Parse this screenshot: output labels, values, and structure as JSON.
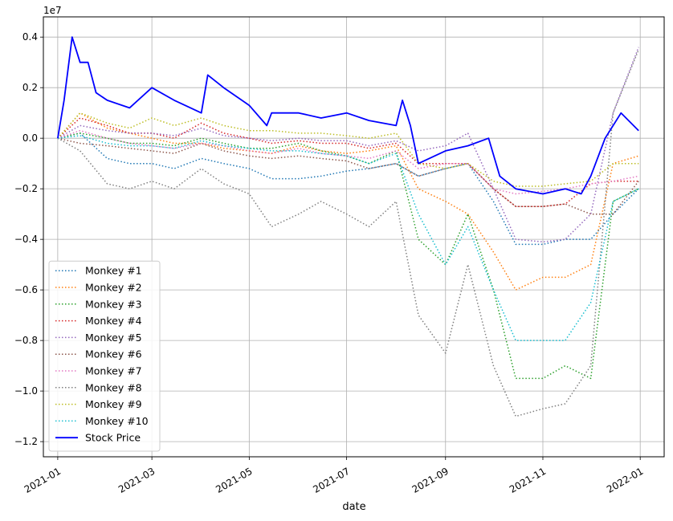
{
  "chart_data": {
    "type": "line",
    "title": "",
    "xlabel": "date",
    "ylabel": "",
    "y_scale_label": "1e7",
    "y_scale": 10000000,
    "xlim": [
      "2020-12-23",
      "2022-01-16"
    ],
    "ylim": [
      -1.26,
      0.48
    ],
    "grid": true,
    "legend_position": "lower-left",
    "x_ticks": [
      "2021-01-01",
      "2021-03-01",
      "2021-05-01",
      "2021-07-01",
      "2021-09-01",
      "2021-11-01",
      "2022-01-01"
    ],
    "x_tick_labels": [
      "2021-01",
      "2021-03",
      "2021-05",
      "2021-07",
      "2021-09",
      "2021-11",
      "2022-01"
    ],
    "y_ticks": [
      -1.2,
      -1.0,
      -0.8,
      -0.6,
      -0.4,
      -0.2,
      0.0,
      0.2,
      0.4
    ],
    "y_tick_labels": [
      "−1.2",
      "−1.0",
      "−0.8",
      "−0.6",
      "−0.4",
      "−0.2",
      "0.0",
      "0.2",
      "0.4"
    ],
    "series": [
      {
        "name": "Monkey #1",
        "color": "#1f77b4",
        "style": "dotted",
        "x": [
          "2021-01-01",
          "2021-01-15",
          "2021-02-01",
          "2021-02-15",
          "2021-03-01",
          "2021-03-15",
          "2021-04-01",
          "2021-04-15",
          "2021-05-01",
          "2021-05-15",
          "2021-06-01",
          "2021-06-15",
          "2021-07-01",
          "2021-07-15",
          "2021-08-01",
          "2021-08-15",
          "2021-09-01",
          "2021-09-15",
          "2021-10-01",
          "2021-10-15",
          "2021-11-01",
          "2021-11-15",
          "2021-12-01",
          "2021-12-15",
          "2021-12-31"
        ],
        "y": [
          0.0,
          0.02,
          -0.08,
          -0.1,
          -0.1,
          -0.12,
          -0.08,
          -0.1,
          -0.12,
          -0.16,
          -0.16,
          -0.15,
          -0.13,
          -0.12,
          -0.1,
          -0.15,
          -0.12,
          -0.1,
          -0.25,
          -0.42,
          -0.42,
          -0.4,
          -0.4,
          -0.3,
          -0.2
        ]
      },
      {
        "name": "Monkey #2",
        "color": "#ff7f0e",
        "style": "dotted",
        "x": [
          "2021-01-01",
          "2021-01-15",
          "2021-02-01",
          "2021-02-15",
          "2021-03-01",
          "2021-03-15",
          "2021-04-01",
          "2021-04-15",
          "2021-05-01",
          "2021-05-15",
          "2021-06-01",
          "2021-06-15",
          "2021-07-01",
          "2021-07-15",
          "2021-08-01",
          "2021-08-15",
          "2021-09-01",
          "2021-09-15",
          "2021-10-01",
          "2021-10-15",
          "2021-11-01",
          "2021-11-15",
          "2021-12-01",
          "2021-12-15",
          "2021-12-31"
        ],
        "y": [
          0.0,
          0.1,
          0.04,
          0.02,
          0.0,
          -0.02,
          -0.02,
          -0.04,
          -0.05,
          -0.06,
          -0.03,
          -0.05,
          -0.06,
          -0.05,
          -0.03,
          -0.2,
          -0.25,
          -0.3,
          -0.45,
          -0.6,
          -0.55,
          -0.55,
          -0.5,
          -0.1,
          -0.07
        ]
      },
      {
        "name": "Monkey #3",
        "color": "#2ca02c",
        "style": "dotted",
        "x": [
          "2021-01-01",
          "2021-01-15",
          "2021-02-01",
          "2021-02-15",
          "2021-03-01",
          "2021-03-15",
          "2021-04-01",
          "2021-04-15",
          "2021-05-01",
          "2021-05-15",
          "2021-06-01",
          "2021-06-15",
          "2021-07-01",
          "2021-07-15",
          "2021-08-01",
          "2021-08-15",
          "2021-09-01",
          "2021-09-15",
          "2021-10-01",
          "2021-10-15",
          "2021-11-01",
          "2021-11-15",
          "2021-12-01",
          "2021-12-15",
          "2021-12-31"
        ],
        "y": [
          0.0,
          0.02,
          0.0,
          -0.02,
          -0.02,
          -0.03,
          0.0,
          -0.02,
          -0.04,
          -0.04,
          -0.02,
          -0.05,
          -0.07,
          -0.1,
          -0.05,
          -0.4,
          -0.5,
          -0.3,
          -0.6,
          -0.95,
          -0.95,
          -0.9,
          -0.95,
          -0.25,
          -0.2
        ]
      },
      {
        "name": "Monkey #4",
        "color": "#d62728",
        "style": "dotted",
        "x": [
          "2021-01-01",
          "2021-01-15",
          "2021-02-01",
          "2021-02-15",
          "2021-03-01",
          "2021-03-15",
          "2021-04-01",
          "2021-04-15",
          "2021-05-01",
          "2021-05-15",
          "2021-06-01",
          "2021-06-15",
          "2021-07-01",
          "2021-07-15",
          "2021-08-01",
          "2021-08-15",
          "2021-09-01",
          "2021-09-15",
          "2021-10-01",
          "2021-10-15",
          "2021-11-01",
          "2021-11-15",
          "2021-12-01",
          "2021-12-15",
          "2021-12-31"
        ],
        "y": [
          0.0,
          0.08,
          0.05,
          0.02,
          0.02,
          0.0,
          0.06,
          0.02,
          0.0,
          -0.02,
          -0.01,
          -0.02,
          -0.02,
          -0.04,
          -0.02,
          -0.1,
          -0.1,
          -0.1,
          -0.2,
          -0.27,
          -0.27,
          -0.26,
          -0.18,
          -0.17,
          -0.17
        ]
      },
      {
        "name": "Monkey #5",
        "color": "#9467bd",
        "style": "dotted",
        "x": [
          "2021-01-01",
          "2021-01-15",
          "2021-02-01",
          "2021-02-15",
          "2021-03-01",
          "2021-03-15",
          "2021-04-01",
          "2021-04-15",
          "2021-05-01",
          "2021-05-15",
          "2021-06-01",
          "2021-06-15",
          "2021-07-01",
          "2021-07-15",
          "2021-08-01",
          "2021-08-15",
          "2021-09-01",
          "2021-09-15",
          "2021-10-01",
          "2021-10-15",
          "2021-11-01",
          "2021-11-15",
          "2021-12-01",
          "2021-12-15",
          "2021-12-31"
        ],
        "y": [
          0.0,
          0.05,
          0.03,
          0.02,
          0.02,
          0.01,
          0.04,
          0.01,
          0.0,
          -0.01,
          0.0,
          -0.01,
          -0.01,
          -0.03,
          -0.01,
          -0.05,
          -0.03,
          0.02,
          -0.2,
          -0.4,
          -0.41,
          -0.4,
          -0.3,
          0.1,
          0.36
        ]
      },
      {
        "name": "Monkey #6",
        "color": "#8c564b",
        "style": "dotted",
        "x": [
          "2021-01-01",
          "2021-01-15",
          "2021-02-01",
          "2021-02-15",
          "2021-03-01",
          "2021-03-15",
          "2021-04-01",
          "2021-04-15",
          "2021-05-01",
          "2021-05-15",
          "2021-06-01",
          "2021-06-15",
          "2021-07-01",
          "2021-07-15",
          "2021-08-01",
          "2021-08-15",
          "2021-09-01",
          "2021-09-15",
          "2021-10-01",
          "2021-10-15",
          "2021-11-01",
          "2021-11-15",
          "2021-12-01",
          "2021-12-15",
          "2021-12-31"
        ],
        "y": [
          0.0,
          -0.02,
          -0.03,
          -0.04,
          -0.05,
          -0.06,
          -0.02,
          -0.05,
          -0.07,
          -0.08,
          -0.07,
          -0.08,
          -0.09,
          -0.12,
          -0.1,
          -0.15,
          -0.12,
          -0.1,
          -0.2,
          -0.27,
          -0.27,
          -0.26,
          -0.3,
          -0.3,
          -0.17
        ]
      },
      {
        "name": "Monkey #7",
        "color": "#e377c2",
        "style": "dotted",
        "x": [
          "2021-01-01",
          "2021-01-15",
          "2021-02-01",
          "2021-02-15",
          "2021-03-01",
          "2021-03-15",
          "2021-04-01",
          "2021-04-15",
          "2021-05-01",
          "2021-05-15",
          "2021-06-01",
          "2021-06-15",
          "2021-07-01",
          "2021-07-15",
          "2021-08-01",
          "2021-08-15",
          "2021-09-01",
          "2021-09-15",
          "2021-10-01",
          "2021-10-15",
          "2021-11-01",
          "2021-11-15",
          "2021-12-01",
          "2021-12-15",
          "2021-12-31"
        ],
        "y": [
          0.0,
          0.03,
          0.0,
          -0.02,
          -0.03,
          -0.04,
          -0.02,
          -0.03,
          -0.05,
          -0.06,
          -0.04,
          -0.06,
          -0.07,
          -0.08,
          -0.05,
          -0.12,
          -0.1,
          -0.1,
          -0.2,
          -0.22,
          -0.21,
          -0.2,
          -0.18,
          -0.17,
          -0.15
        ]
      },
      {
        "name": "Monkey #8",
        "color": "#7f7f7f",
        "style": "dotted",
        "x": [
          "2021-01-01",
          "2021-01-15",
          "2021-02-01",
          "2021-02-15",
          "2021-03-01",
          "2021-03-15",
          "2021-04-01",
          "2021-04-15",
          "2021-05-01",
          "2021-05-15",
          "2021-06-01",
          "2021-06-15",
          "2021-07-01",
          "2021-07-15",
          "2021-08-01",
          "2021-08-15",
          "2021-09-01",
          "2021-09-15",
          "2021-10-01",
          "2021-10-15",
          "2021-11-01",
          "2021-11-15",
          "2021-12-01",
          "2021-12-15",
          "2021-12-31"
        ],
        "y": [
          0.0,
          -0.05,
          -0.18,
          -0.2,
          -0.17,
          -0.2,
          -0.12,
          -0.18,
          -0.22,
          -0.35,
          -0.3,
          -0.25,
          -0.3,
          -0.35,
          -0.25,
          -0.7,
          -0.85,
          -0.5,
          -0.9,
          -1.1,
          -1.07,
          -1.05,
          -0.9,
          0.1,
          0.35
        ]
      },
      {
        "name": "Monkey #9",
        "color": "#bcbd22",
        "style": "dotted",
        "x": [
          "2021-01-01",
          "2021-01-15",
          "2021-02-01",
          "2021-02-15",
          "2021-03-01",
          "2021-03-15",
          "2021-04-01",
          "2021-04-15",
          "2021-05-01",
          "2021-05-15",
          "2021-06-01",
          "2021-06-15",
          "2021-07-01",
          "2021-07-15",
          "2021-08-01",
          "2021-08-15",
          "2021-09-01",
          "2021-09-15",
          "2021-10-01",
          "2021-10-15",
          "2021-11-01",
          "2021-11-15",
          "2021-12-01",
          "2021-12-15",
          "2021-12-31"
        ],
        "y": [
          0.0,
          0.1,
          0.06,
          0.04,
          0.08,
          0.05,
          0.08,
          0.05,
          0.03,
          0.03,
          0.02,
          0.02,
          0.01,
          0.0,
          0.02,
          -0.1,
          -0.12,
          -0.1,
          -0.17,
          -0.19,
          -0.19,
          -0.18,
          -0.17,
          -0.1,
          -0.1
        ]
      },
      {
        "name": "Monkey #10",
        "color": "#17becf",
        "style": "dotted",
        "x": [
          "2021-01-01",
          "2021-01-15",
          "2021-02-01",
          "2021-02-15",
          "2021-03-01",
          "2021-03-15",
          "2021-04-01",
          "2021-04-15",
          "2021-05-01",
          "2021-05-15",
          "2021-06-01",
          "2021-06-15",
          "2021-07-01",
          "2021-07-15",
          "2021-08-01",
          "2021-08-15",
          "2021-09-01",
          "2021-09-15",
          "2021-10-01",
          "2021-10-15",
          "2021-11-01",
          "2021-11-15",
          "2021-12-01",
          "2021-12-15",
          "2021-12-31"
        ],
        "y": [
          0.0,
          0.01,
          -0.02,
          -0.03,
          -0.03,
          -0.04,
          -0.01,
          -0.03,
          -0.04,
          -0.05,
          -0.05,
          -0.06,
          -0.07,
          -0.1,
          -0.06,
          -0.3,
          -0.5,
          -0.35,
          -0.6,
          -0.8,
          -0.8,
          -0.8,
          -0.65,
          -0.25,
          -0.2
        ]
      },
      {
        "name": "Stock Price",
        "color": "#0000ff",
        "style": "solid",
        "x": [
          "2021-01-01",
          "2021-01-05",
          "2021-01-10",
          "2021-01-15",
          "2021-01-20",
          "2021-01-25",
          "2021-02-01",
          "2021-02-15",
          "2021-03-01",
          "2021-03-15",
          "2021-04-01",
          "2021-04-05",
          "2021-04-15",
          "2021-05-01",
          "2021-05-12",
          "2021-05-15",
          "2021-06-01",
          "2021-06-15",
          "2021-07-01",
          "2021-07-15",
          "2021-08-01",
          "2021-08-05",
          "2021-08-10",
          "2021-08-15",
          "2021-09-01",
          "2021-09-15",
          "2021-09-28",
          "2021-10-05",
          "2021-10-15",
          "2021-11-01",
          "2021-11-15",
          "2021-11-25",
          "2021-12-01",
          "2021-12-10",
          "2021-12-20",
          "2021-12-31"
        ],
        "y": [
          0.0,
          0.15,
          0.4,
          0.3,
          0.3,
          0.18,
          0.15,
          0.12,
          0.2,
          0.15,
          0.1,
          0.25,
          0.2,
          0.13,
          0.05,
          0.1,
          0.1,
          0.08,
          0.1,
          0.07,
          0.05,
          0.15,
          0.05,
          -0.1,
          -0.05,
          -0.03,
          0.0,
          -0.15,
          -0.2,
          -0.22,
          -0.2,
          -0.22,
          -0.15,
          0.0,
          0.1,
          0.03
        ]
      }
    ]
  }
}
